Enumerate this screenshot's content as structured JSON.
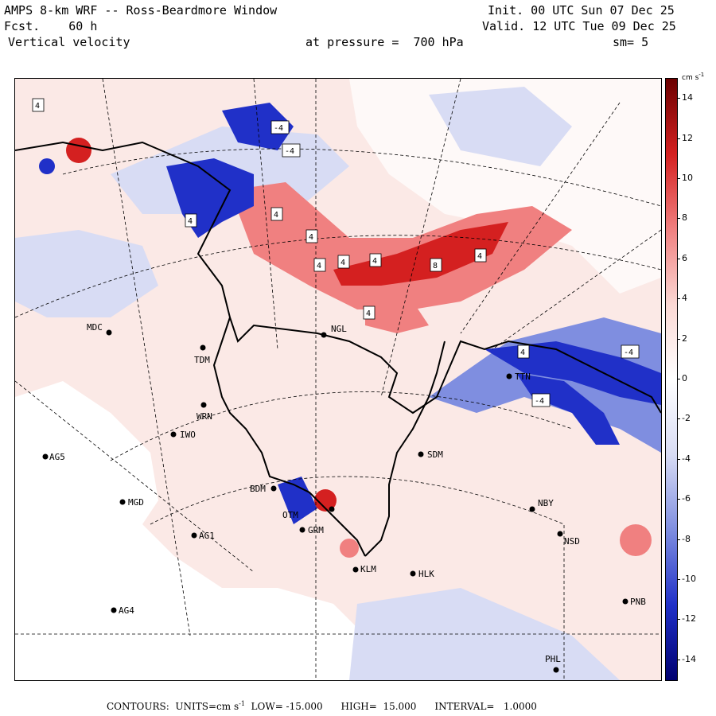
{
  "header": {
    "model_title": "AMPS 8-km WRF -- Ross-Beardmore Window",
    "forecast": "Fcst.    60 h",
    "field": "Vertical velocity",
    "init": "Init. 00 UTC Sun 07 Dec 25",
    "valid": "Valid. 12 UTC Tue 09 Dec 25",
    "pressure": "at pressure =  700 hPa",
    "smoothing": "sm= 5"
  },
  "colorbar": {
    "units": "cm s",
    "units_exp": "-1",
    "ticks": [
      "14",
      "12",
      "10",
      "8",
      "6",
      "4",
      "2",
      "0",
      "-2",
      "-4",
      "-6",
      "-8",
      "-10",
      "-12",
      "-14"
    ],
    "tick_values": [
      14,
      12,
      10,
      8,
      6,
      4,
      2,
      0,
      -2,
      -4,
      -6,
      -8,
      -10,
      -12,
      -14
    ],
    "range": [
      -15,
      15
    ],
    "colors": {
      "max": "#6b0000",
      "strong_pos": "#d42020",
      "mid_pos": "#f08080",
      "weak_pos": "#fbd8d4",
      "zero": "#ffffff",
      "weak_neg": "#d8dcf4",
      "mid_neg": "#7f8ee0",
      "strong_neg": "#2030c8",
      "min": "#000070"
    }
  },
  "stations": [
    {
      "id": "MDC"
    },
    {
      "id": "TDM"
    },
    {
      "id": "NGL"
    },
    {
      "id": "WRN"
    },
    {
      "id": "IWO"
    },
    {
      "id": "AG5"
    },
    {
      "id": "MGD"
    },
    {
      "id": "AG1"
    },
    {
      "id": "AG4"
    },
    {
      "id": "BDM"
    },
    {
      "id": "OTM"
    },
    {
      "id": "GRM"
    },
    {
      "id": "KLM"
    },
    {
      "id": "HLK"
    },
    {
      "id": "SDM"
    },
    {
      "id": "NBY"
    },
    {
      "id": "NSD"
    },
    {
      "id": "PNB"
    },
    {
      "id": "PHL"
    },
    {
      "id": "TTN"
    }
  ],
  "contour_labels": [
    "4",
    "-4",
    "-4",
    "4",
    "4",
    "4",
    "4",
    "8",
    "4",
    "4",
    "4",
    "-4",
    "-4",
    "4",
    "4"
  ],
  "footer": {
    "contours": "CONTOURS:  UNITS=cm s",
    "exp": "-1",
    "low": "LOW= -15.000",
    "high": "HIGH=  15.000",
    "interval": "INTERVAL=   1.0000"
  }
}
